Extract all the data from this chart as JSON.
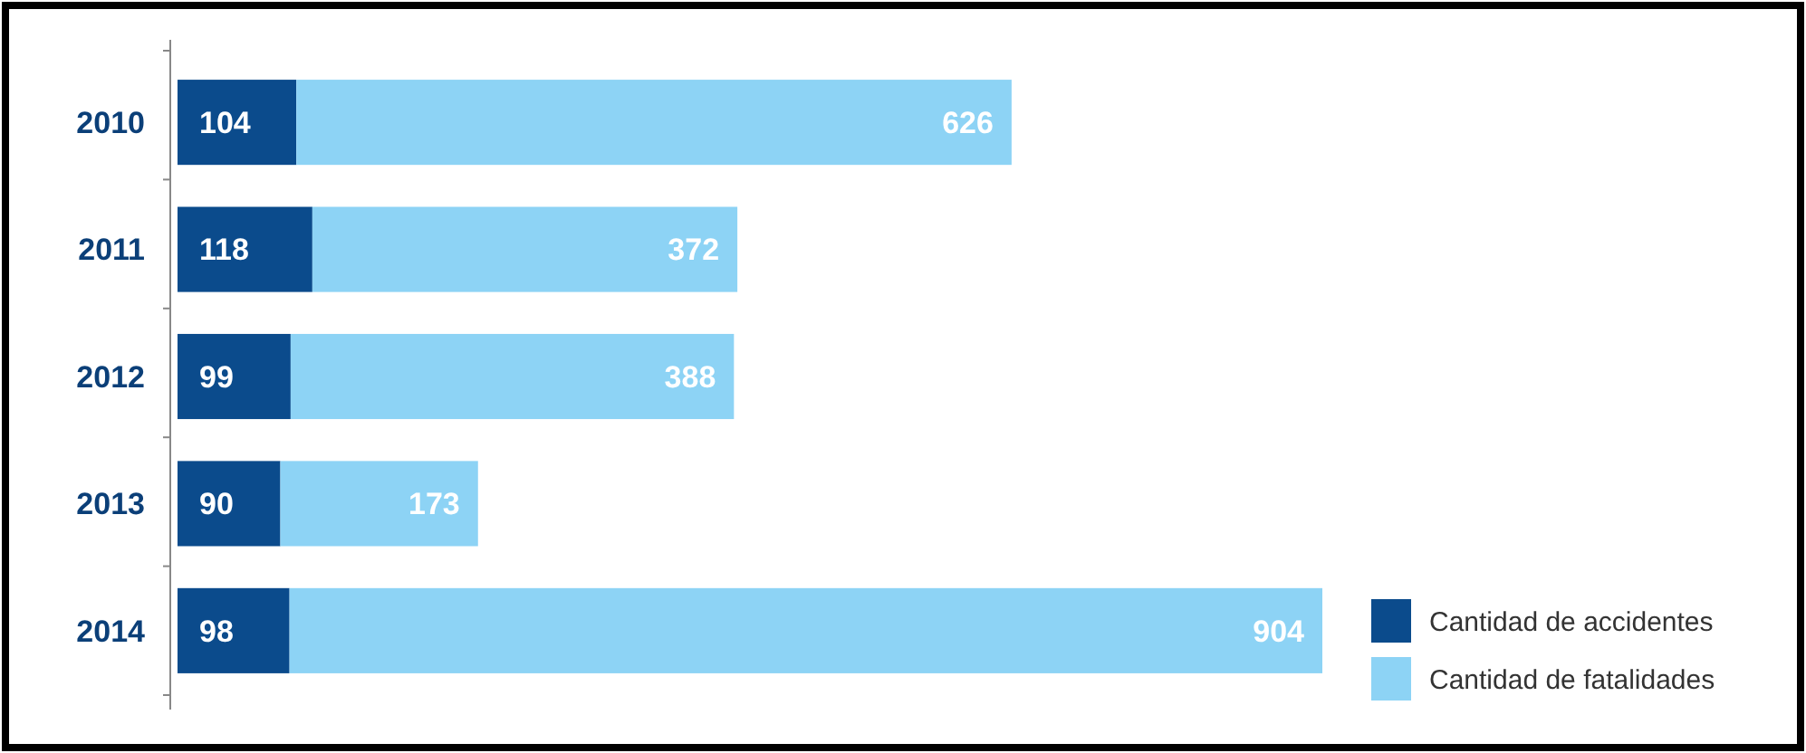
{
  "chart_data": {
    "type": "bar",
    "orientation": "horizontal",
    "stacked": true,
    "data_labels": true,
    "legend": "bottom right",
    "tick_labels": "y",
    "categories": [
      "2010",
      "2011",
      "2012",
      "2013",
      "2014"
    ],
    "series": [
      {
        "name": "Cantidad de accidentes",
        "color": "#0b4b8c",
        "values": [
          104,
          118,
          99,
          90,
          98
        ]
      },
      {
        "name": "Cantidad de fatalidades",
        "color": "#8dd3f5",
        "values": [
          626,
          372,
          388,
          173,
          904
        ]
      }
    ]
  }
}
